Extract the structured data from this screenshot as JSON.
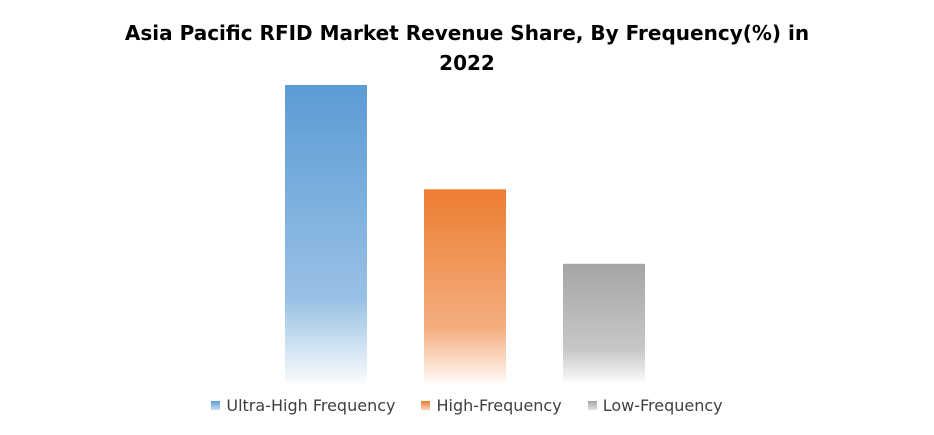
{
  "chart_data": {
    "type": "bar",
    "title_lines": [
      "Asia Pacific RFID Market Revenue Share, By Frequency(%) in",
      "2022"
    ],
    "categories": [
      "Ultra-High Frequency",
      "High-Frequency",
      "Low-Frequency"
    ],
    "values": [
      100,
      65,
      40
    ],
    "ylim": [
      0,
      100
    ],
    "grid": false,
    "legend_position": "bottom",
    "colors": [
      "#5B9BD5",
      "#ED7D31",
      "#A5A5A5"
    ]
  }
}
